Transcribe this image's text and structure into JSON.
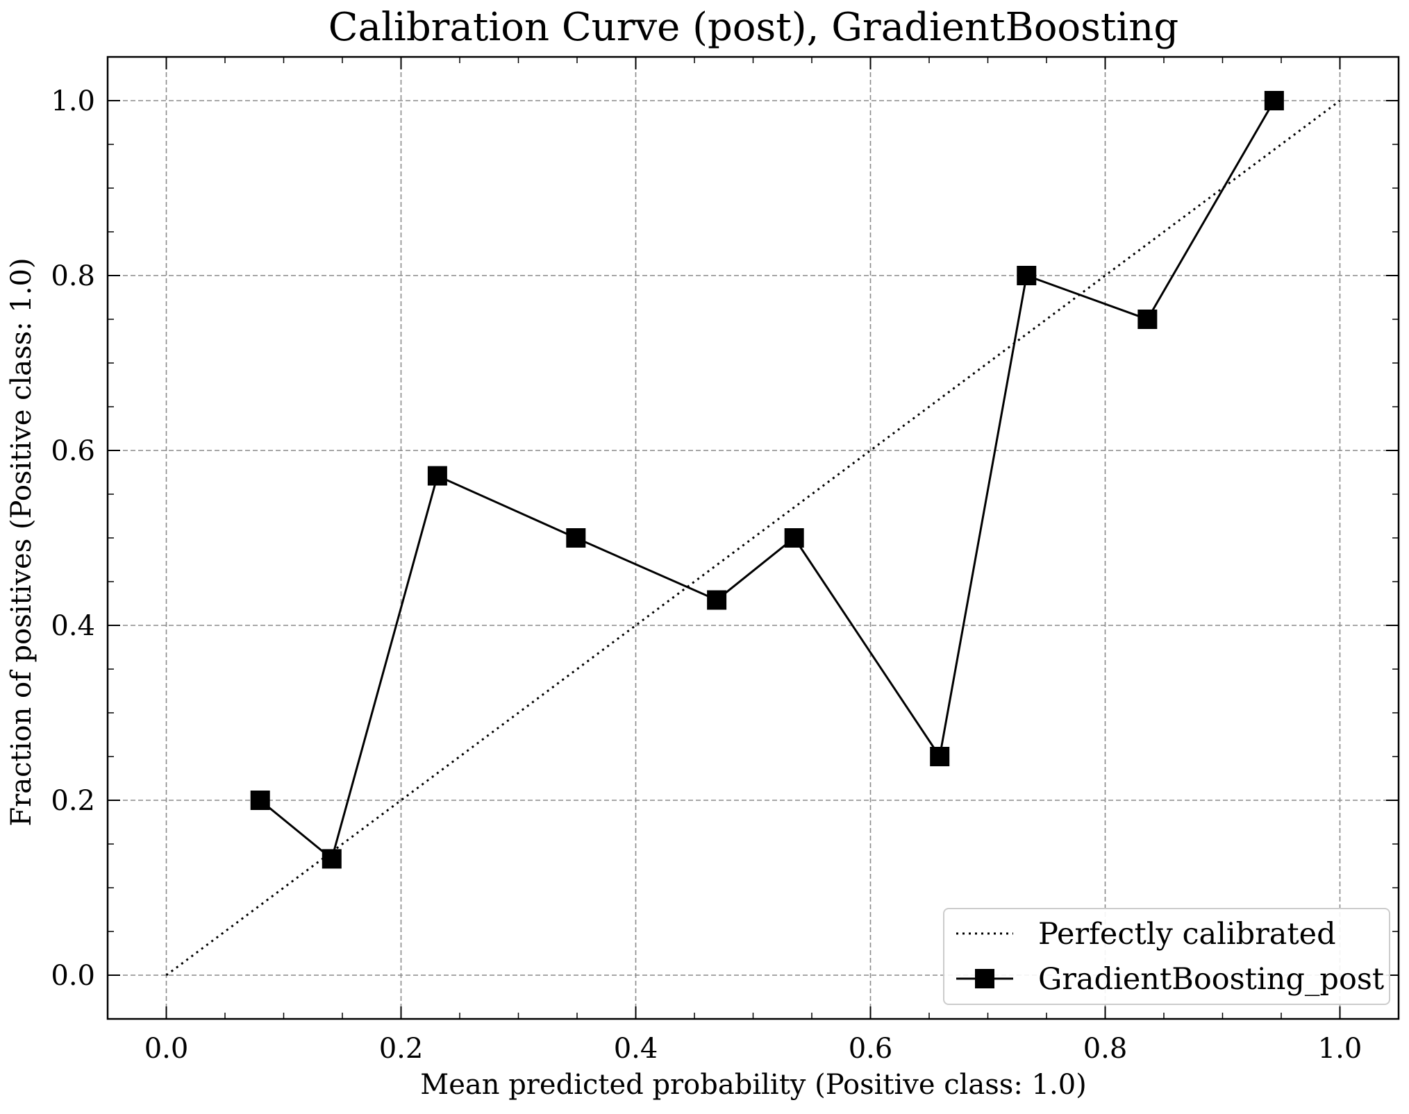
{
  "chart_data": {
    "type": "line",
    "title": "Calibration Curve (post), GradientBoosting",
    "xlabel": "Mean predicted probability (Positive class: 1.0)",
    "ylabel": "Fraction of positives (Positive class: 1.0)",
    "xlim": [
      -0.05,
      1.05
    ],
    "ylim": [
      -0.05,
      1.05
    ],
    "xticks": [
      "0.0",
      "0.2",
      "0.4",
      "0.6",
      "0.8",
      "1.0"
    ],
    "yticks": [
      "0.0",
      "0.2",
      "0.4",
      "0.6",
      "0.8",
      "1.0"
    ],
    "grid": true,
    "legend_position": "lower-right",
    "series": [
      {
        "name": "Perfectly calibrated",
        "style": "dotted",
        "marker": "none",
        "color": "#000000",
        "x": [
          0.0,
          1.0
        ],
        "y": [
          0.0,
          1.0
        ]
      },
      {
        "name": "GradientBoosting_post",
        "style": "solid",
        "marker": "square",
        "color": "#000000",
        "x": [
          0.08,
          0.141,
          0.231,
          0.349,
          0.469,
          0.535,
          0.659,
          0.733,
          0.836,
          0.944
        ],
        "y": [
          0.2,
          0.133,
          0.571,
          0.5,
          0.429,
          0.5,
          0.25,
          0.8,
          0.75,
          1.0
        ]
      }
    ]
  }
}
